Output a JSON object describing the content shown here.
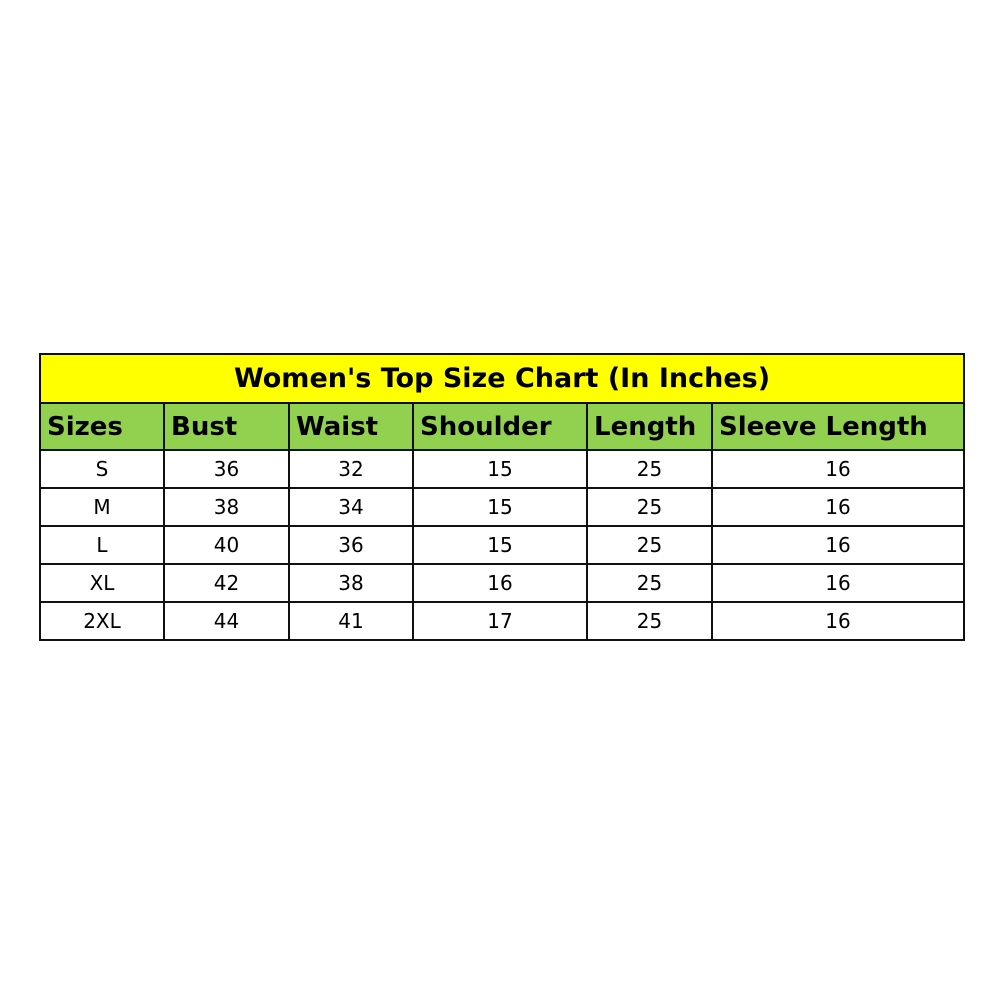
{
  "title": "Women's Top Size Chart (In Inches)",
  "colors": {
    "title_bg": "#ffff00",
    "header_bg": "#92d050"
  },
  "columns": [
    "Sizes",
    "Bust",
    "Waist",
    "Shoulder",
    "Length",
    "Sleeve Length"
  ],
  "rows": [
    [
      "S",
      "36",
      "32",
      "15",
      "25",
      "16"
    ],
    [
      "M",
      "38",
      "34",
      "15",
      "25",
      "16"
    ],
    [
      "L",
      "40",
      "36",
      "15",
      "25",
      "16"
    ],
    [
      "XL",
      "42",
      "38",
      "16",
      "25",
      "16"
    ],
    [
      "2XL",
      "44",
      "41",
      "17",
      "25",
      "16"
    ]
  ]
}
